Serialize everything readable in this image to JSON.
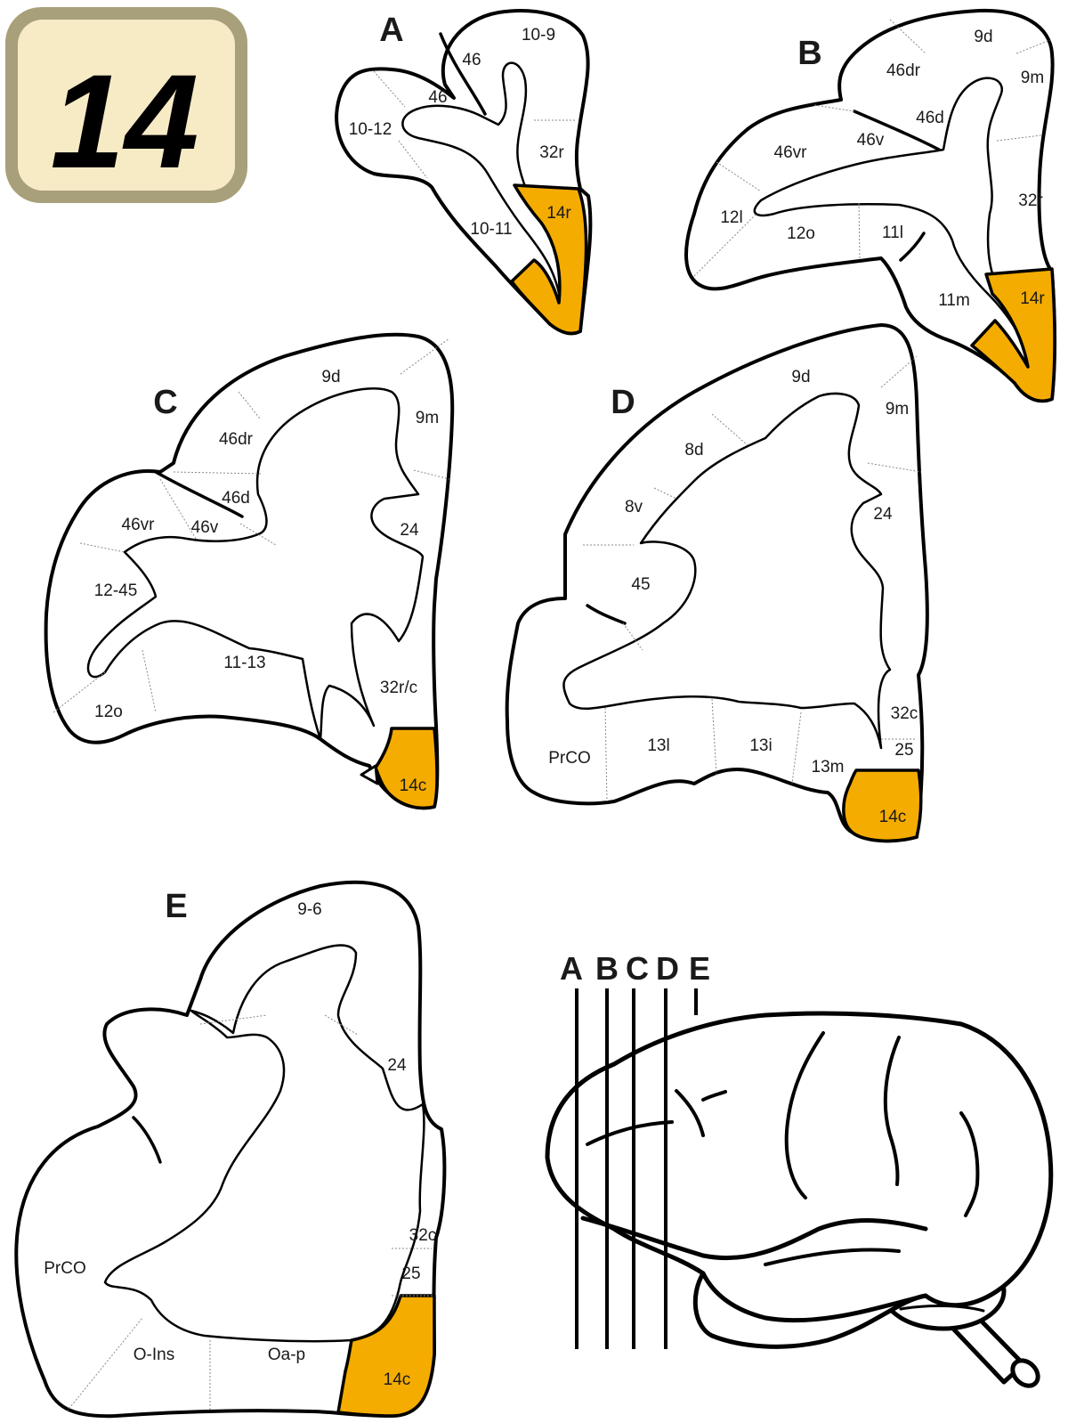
{
  "figure_number": "14",
  "colors": {
    "area_14": "#f5ac00",
    "badge_fill": "#f7ebc6",
    "badge_border": "#a8a07a"
  },
  "panels": {
    "A": {
      "letter": "A",
      "labels": [
        "10-9",
        "46",
        "46",
        "10-12",
        "32r",
        "14r",
        "10-11"
      ]
    },
    "B": {
      "letter": "B",
      "labels": [
        "9d",
        "46dr",
        "9m",
        "46d",
        "46vr",
        "46v",
        "32r",
        "12l",
        "12o",
        "11l",
        "14r",
        "11m"
      ]
    },
    "C": {
      "letter": "C",
      "labels": [
        "9d",
        "9m",
        "46dr",
        "46d",
        "46vr",
        "46v",
        "24",
        "12-45",
        "11-13",
        "32r/c",
        "12o",
        "14c"
      ]
    },
    "D": {
      "letter": "D",
      "labels": [
        "9d",
        "9m",
        "8d",
        "8v",
        "24",
        "45",
        "32c",
        "13l",
        "13i",
        "PrCO",
        "25",
        "13m",
        "14c"
      ]
    },
    "E": {
      "letter": "E",
      "labels": [
        "9-6",
        "24",
        "32c",
        "PrCO",
        "25",
        "O-Ins",
        "Oa-p",
        "14c"
      ]
    }
  },
  "brain_inset": {
    "cut_labels": [
      "A",
      "B",
      "C",
      "D",
      "E"
    ]
  }
}
